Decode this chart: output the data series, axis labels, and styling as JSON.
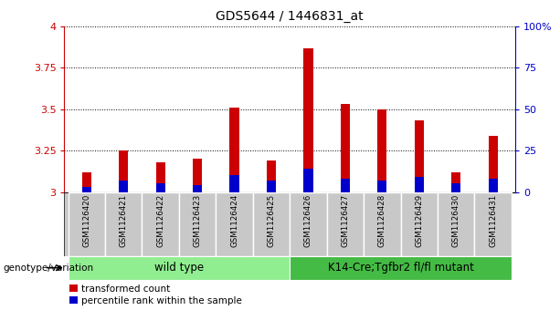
{
  "title": "GDS5644 / 1446831_at",
  "samples": [
    "GSM1126420",
    "GSM1126421",
    "GSM1126422",
    "GSM1126423",
    "GSM1126424",
    "GSM1126425",
    "GSM1126426",
    "GSM1126427",
    "GSM1126428",
    "GSM1126429",
    "GSM1126430",
    "GSM1126431"
  ],
  "red_values": [
    3.12,
    3.25,
    3.18,
    3.2,
    3.51,
    3.19,
    3.87,
    3.53,
    3.5,
    3.43,
    3.12,
    3.34
  ],
  "blue_values": [
    3.03,
    3.07,
    3.05,
    3.04,
    3.1,
    3.07,
    3.14,
    3.08,
    3.07,
    3.09,
    3.05,
    3.08
  ],
  "ymin": 3.0,
  "ymax": 4.0,
  "yticks": [
    3.0,
    3.25,
    3.5,
    3.75,
    4.0
  ],
  "ytick_labels": [
    "3",
    "3.25",
    "3.5",
    "3.75",
    "4"
  ],
  "right_yticks": [
    0,
    25,
    50,
    75,
    100
  ],
  "right_ytick_labels": [
    "0",
    "25",
    "50",
    "75",
    "100%"
  ],
  "bar_color_red": "#cc0000",
  "bar_color_blue": "#0000cc",
  "bar_width": 0.25,
  "grid_color": "#000000",
  "group1_label": "wild type",
  "group2_label": "K14-Cre;Tgfbr2 fl/fl mutant",
  "group1_color": "#90ee90",
  "group2_color": "#44bb44",
  "xlabel_left": "genotype/variation",
  "legend_red": "transformed count",
  "legend_blue": "percentile rank within the sample",
  "tick_label_color": "#cc0000",
  "right_tick_color": "#0000cc",
  "title_fontsize": 10,
  "label_area_bg": "#c8c8c8"
}
